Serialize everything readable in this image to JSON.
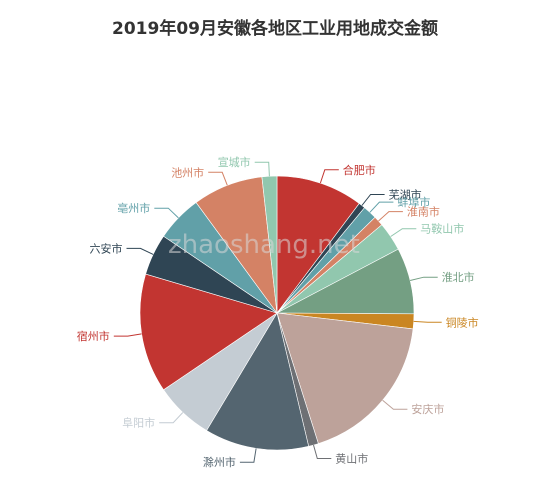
{
  "chart_data": {
    "type": "pie",
    "title": "2019年09月安徽各地区工业用地成交金额",
    "watermark": "zhaoshang.net",
    "slices": [
      {
        "name": "合肥市",
        "value": 10.5,
        "color": "#c23531"
      },
      {
        "name": "芜湖市",
        "value": 0.8,
        "color": "#2f4554"
      },
      {
        "name": "蚌埠市",
        "value": 1.7,
        "color": "#61a0a8"
      },
      {
        "name": "淮南市",
        "value": 1.2,
        "color": "#d48265"
      },
      {
        "name": "马鞍山市",
        "value": 3.5,
        "color": "#91c7ae"
      },
      {
        "name": "淮北市",
        "value": 8.0,
        "color": "#749f83"
      },
      {
        "name": "铜陵市",
        "value": 1.8,
        "color": "#ca8622"
      },
      {
        "name": "安庆市",
        "value": 18.7,
        "color": "#bda29a"
      },
      {
        "name": "黄山市",
        "value": 1.2,
        "color": "#6e7074"
      },
      {
        "name": "滁州市",
        "value": 12.6,
        "color": "#546570"
      },
      {
        "name": "阜阳市",
        "value": 7.1,
        "color": "#c4ccd3"
      },
      {
        "name": "宿州市",
        "value": 14.4,
        "color": "#c23531"
      },
      {
        "name": "六安市",
        "value": 5.0,
        "color": "#2f4554"
      },
      {
        "name": "亳州市",
        "value": 5.6,
        "color": "#61a0a8"
      },
      {
        "name": "池州市",
        "value": 8.5,
        "color": "#d48265"
      },
      {
        "name": "宣城市",
        "value": 1.8,
        "color": "#91c7ae"
      }
    ]
  }
}
